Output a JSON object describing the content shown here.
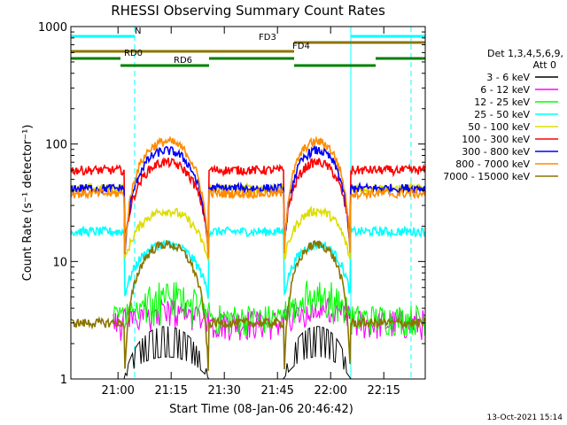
{
  "chart_data": {
    "type": "line",
    "title": "RHESSI Observing Summary Count Rates",
    "xlabel": "Start Time (08-Jan-06 20:46:42)",
    "ylabel": "Count Rate (s⁻¹ detector⁻¹)",
    "yscale": "log",
    "ylim": [
      1,
      1000
    ],
    "xlim_minutes": [
      0,
      100
    ],
    "x_ticks": [
      {
        "minute": 13.3,
        "label": "21:00"
      },
      {
        "minute": 28.3,
        "label": "21:15"
      },
      {
        "minute": 43.3,
        "label": "21:30"
      },
      {
        "minute": 58.3,
        "label": "21:45"
      },
      {
        "minute": 73.3,
        "label": "22:00"
      },
      {
        "minute": 88.3,
        "label": "22:15"
      }
    ],
    "y_ticks": [
      {
        "value": 1,
        "label": "1"
      },
      {
        "value": 10,
        "label": "10"
      },
      {
        "value": 100,
        "label": "100"
      },
      {
        "value": 1000,
        "label": "1000"
      }
    ],
    "legend": {
      "header": "Det 1,3,4,5,6,9,",
      "subheader": "Att 0",
      "placement": "right"
    },
    "series": [
      {
        "name": "3 - 6 keV",
        "color": "#000000",
        "base": 1.0,
        "peak": 2.8,
        "kind": "black"
      },
      {
        "name": "6 - 12 keV",
        "color": "#ff00ff",
        "base": 3.0,
        "peak": 4.0,
        "kind": "noisy"
      },
      {
        "name": "12 - 25 keV",
        "color": "#00ff00",
        "base": 3.3,
        "peak": 6.0,
        "kind": "noisy"
      },
      {
        "name": "25 - 50 keV",
        "color": "#00ffff",
        "base": 18,
        "peak": 14,
        "kind": "orbit"
      },
      {
        "name": "50 - 100 keV",
        "color": "#dddd00",
        "base": 42,
        "peak": 27,
        "kind": "orbit"
      },
      {
        "name": "100 - 300 keV",
        "color": "#ff0000",
        "base": 60,
        "peak": 70,
        "kind": "orbit"
      },
      {
        "name": "300 - 800 keV",
        "color": "#0000ff",
        "base": 42,
        "peak": 88,
        "kind": "orbit"
      },
      {
        "name": "800 - 7000 keV",
        "color": "#ff8c00",
        "base": 38,
        "peak": 105,
        "kind": "orbit"
      },
      {
        "name": "7000 - 15000 keV",
        "color": "#8b7500",
        "base": 3.0,
        "peak": 14,
        "kind": "orbit"
      }
    ],
    "flag_bars": [
      {
        "label": "N",
        "color": "#00ffff",
        "segments": [
          [
            0,
            18
          ],
          [
            79,
            100
          ]
        ],
        "level": 41
      },
      {
        "label": "FD3",
        "color": "#8b7500",
        "segments": [
          [
            63,
            100
          ]
        ],
        "level": 48
      },
      {
        "label": "FD4",
        "color": "#8b7500",
        "segments": [
          [
            0,
            63
          ]
        ],
        "level": 58
      },
      {
        "label": "RD0",
        "color": "#008000",
        "segments": [
          [
            0,
            14
          ],
          [
            39,
            63
          ],
          [
            86,
            100
          ]
        ],
        "level": 66
      },
      {
        "label": "RD6",
        "color": "#008000",
        "segments": [
          [
            14,
            39
          ],
          [
            63,
            86
          ]
        ],
        "level": 74
      }
    ],
    "saa_minutes": [
      [
        15,
        39
      ],
      [
        60,
        79
      ]
    ],
    "annotation_minutes": [
      18,
      79,
      96
    ]
  },
  "footer": {
    "timestamp": "13-Oct-2021 15:14"
  }
}
